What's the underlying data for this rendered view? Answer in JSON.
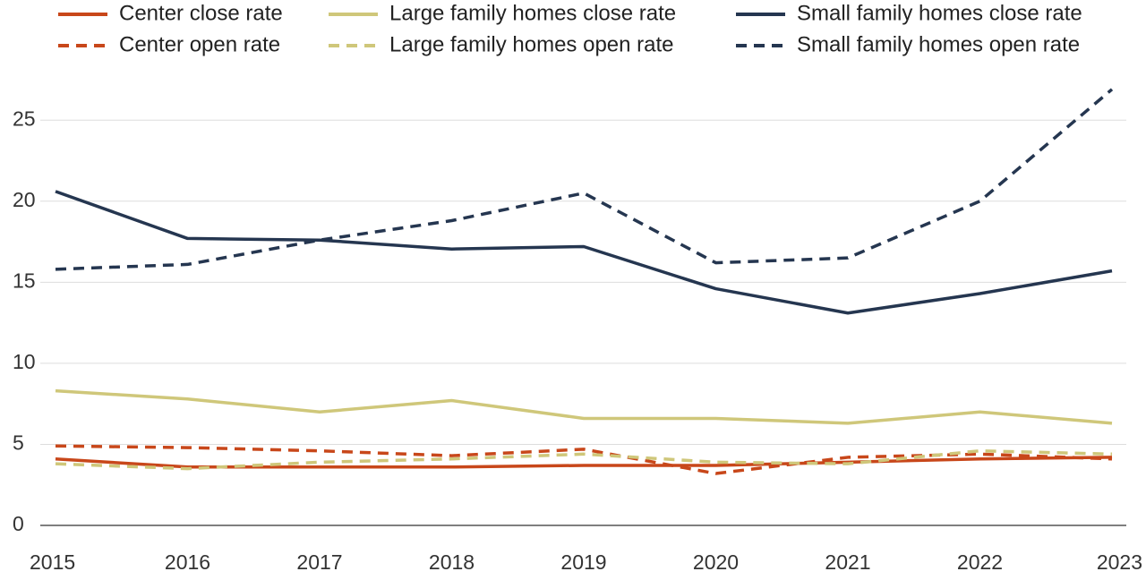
{
  "chart_data": {
    "type": "line",
    "categories": [
      "2015",
      "2016",
      "2017",
      "2018",
      "2019",
      "2020",
      "2021",
      "2022",
      "2023"
    ],
    "ylim": [
      0,
      27
    ],
    "yticks": [
      0,
      5,
      10,
      15,
      20,
      25
    ],
    "grid": true,
    "series": [
      {
        "name": "Center close rate",
        "color": "#c8471a",
        "dashed": false,
        "values": [
          4.1,
          3.6,
          3.6,
          3.6,
          3.7,
          3.7,
          3.9,
          4.1,
          4.2
        ]
      },
      {
        "name": "Large family homes close rate",
        "color": "#cfc77a",
        "dashed": false,
        "values": [
          8.3,
          7.8,
          7.0,
          7.7,
          6.6,
          6.6,
          6.3,
          7.0,
          6.3
        ]
      },
      {
        "name": "Small family homes close rate",
        "color": "#253650",
        "dashed": false,
        "values": [
          20.6,
          17.7,
          17.6,
          17.05,
          17.2,
          14.6,
          13.1,
          14.3,
          15.7
        ]
      },
      {
        "name": "Center open rate",
        "color": "#c8471a",
        "dashed": true,
        "values": [
          4.9,
          4.8,
          4.6,
          4.3,
          4.7,
          3.2,
          4.2,
          4.4,
          4.1
        ]
      },
      {
        "name": "Large family homes open rate",
        "color": "#cfc77a",
        "dashed": true,
        "values": [
          3.8,
          3.5,
          3.9,
          4.1,
          4.4,
          3.9,
          3.8,
          4.6,
          4.4
        ]
      },
      {
        "name": "Small family homes open rate",
        "color": "#253650",
        "dashed": true,
        "values": [
          15.8,
          16.1,
          17.6,
          18.8,
          20.5,
          16.2,
          16.5,
          20.0,
          26.9
        ]
      }
    ]
  }
}
